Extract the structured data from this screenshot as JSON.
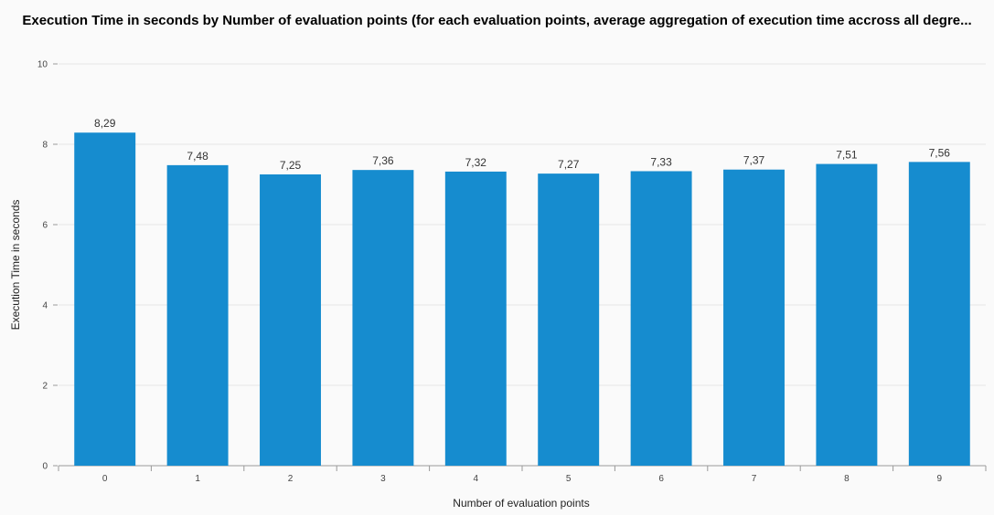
{
  "chart_data": {
    "type": "bar",
    "title": "Execution Time in seconds by Number of evaluation points (for each evaluation points, average aggregation of execution time accross all degre...",
    "xlabel": "Number of evaluation points",
    "ylabel": "Execution Time in seconds",
    "categories": [
      "0",
      "1",
      "2",
      "3",
      "4",
      "5",
      "6",
      "7",
      "8",
      "9"
    ],
    "values": [
      8.29,
      7.48,
      7.25,
      7.36,
      7.32,
      7.27,
      7.33,
      7.37,
      7.51,
      7.56
    ],
    "value_labels": [
      "8,29",
      "7,48",
      "7,25",
      "7,36",
      "7,32",
      "7,27",
      "7,33",
      "7,37",
      "7,51",
      "7,56"
    ],
    "ylim": [
      0,
      10
    ],
    "yticks": [
      "0",
      "2",
      "4",
      "6",
      "8",
      "10"
    ],
    "grid": true,
    "legend": "none",
    "bar_color": "#168ccf"
  }
}
